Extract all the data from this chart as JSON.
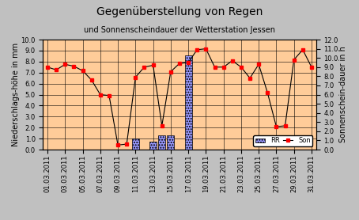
{
  "title_line1": "Gegenüberstellung von Regen",
  "title_line2": "und Sonnenscheindauer der Wetterstation Jessen",
  "ylabel_left": "Niederschlags-höhe in mm",
  "ylabel_right": "Sonnenschein-dauer in h",
  "tick_labels": [
    "01.03.2011",
    "03.03.2011",
    "05.03.2011",
    "07.03.2011",
    "09.03.2011",
    "11.03.2011",
    "13.03.2011",
    "15.03.2011",
    "17.03.2011",
    "19.03.2011",
    "21.03.2011",
    "23.03.2011",
    "25.03.2011",
    "27.03.2011",
    "29.03.2011",
    "31.03.2011"
  ],
  "rr_values": [
    0.0,
    0.0,
    0.0,
    0.0,
    0.0,
    0.0,
    0.0,
    0.0,
    0.0,
    0.0,
    1.0,
    0.0,
    0.7,
    1.3,
    1.3,
    0.0,
    8.6,
    0.0,
    0.0,
    0.0,
    0.0,
    0.0,
    0.0,
    0.0,
    0.0,
    0.0,
    0.0,
    0.0,
    0.0,
    0.0,
    0.0
  ],
  "son_values": [
    9.0,
    8.7,
    9.3,
    9.1,
    8.6,
    7.6,
    6.0,
    5.9,
    0.5,
    0.6,
    7.9,
    9.0,
    9.2,
    2.6,
    8.5,
    9.4,
    9.5,
    10.9,
    11.0,
    9.0,
    9.0,
    9.7,
    9.0,
    7.8,
    9.3,
    6.2,
    2.5,
    2.6,
    9.8,
    10.9,
    9.0
  ],
  "ylim_left": [
    0.0,
    10.0
  ],
  "ylim_right": [
    0.0,
    12.0
  ],
  "yticks_left": [
    0.0,
    1.0,
    2.0,
    3.0,
    4.0,
    5.0,
    6.0,
    7.0,
    8.0,
    9.0,
    10.0
  ],
  "yticks_right": [
    0.0,
    1.0,
    2.0,
    3.0,
    4.0,
    5.0,
    6.0,
    7.0,
    8.0,
    9.0,
    10.0,
    11.0,
    12.0
  ],
  "bg_color": "#FFCC99",
  "fig_bg_color": "#C0C0C0",
  "bar_color": "#9999FF",
  "bar_hatch": ".....",
  "line_color": "#000000",
  "marker_color": "#FF0000",
  "title1_fontsize": 10,
  "title2_fontsize": 7,
  "axis_label_fontsize": 7,
  "tick_fontsize": 6
}
